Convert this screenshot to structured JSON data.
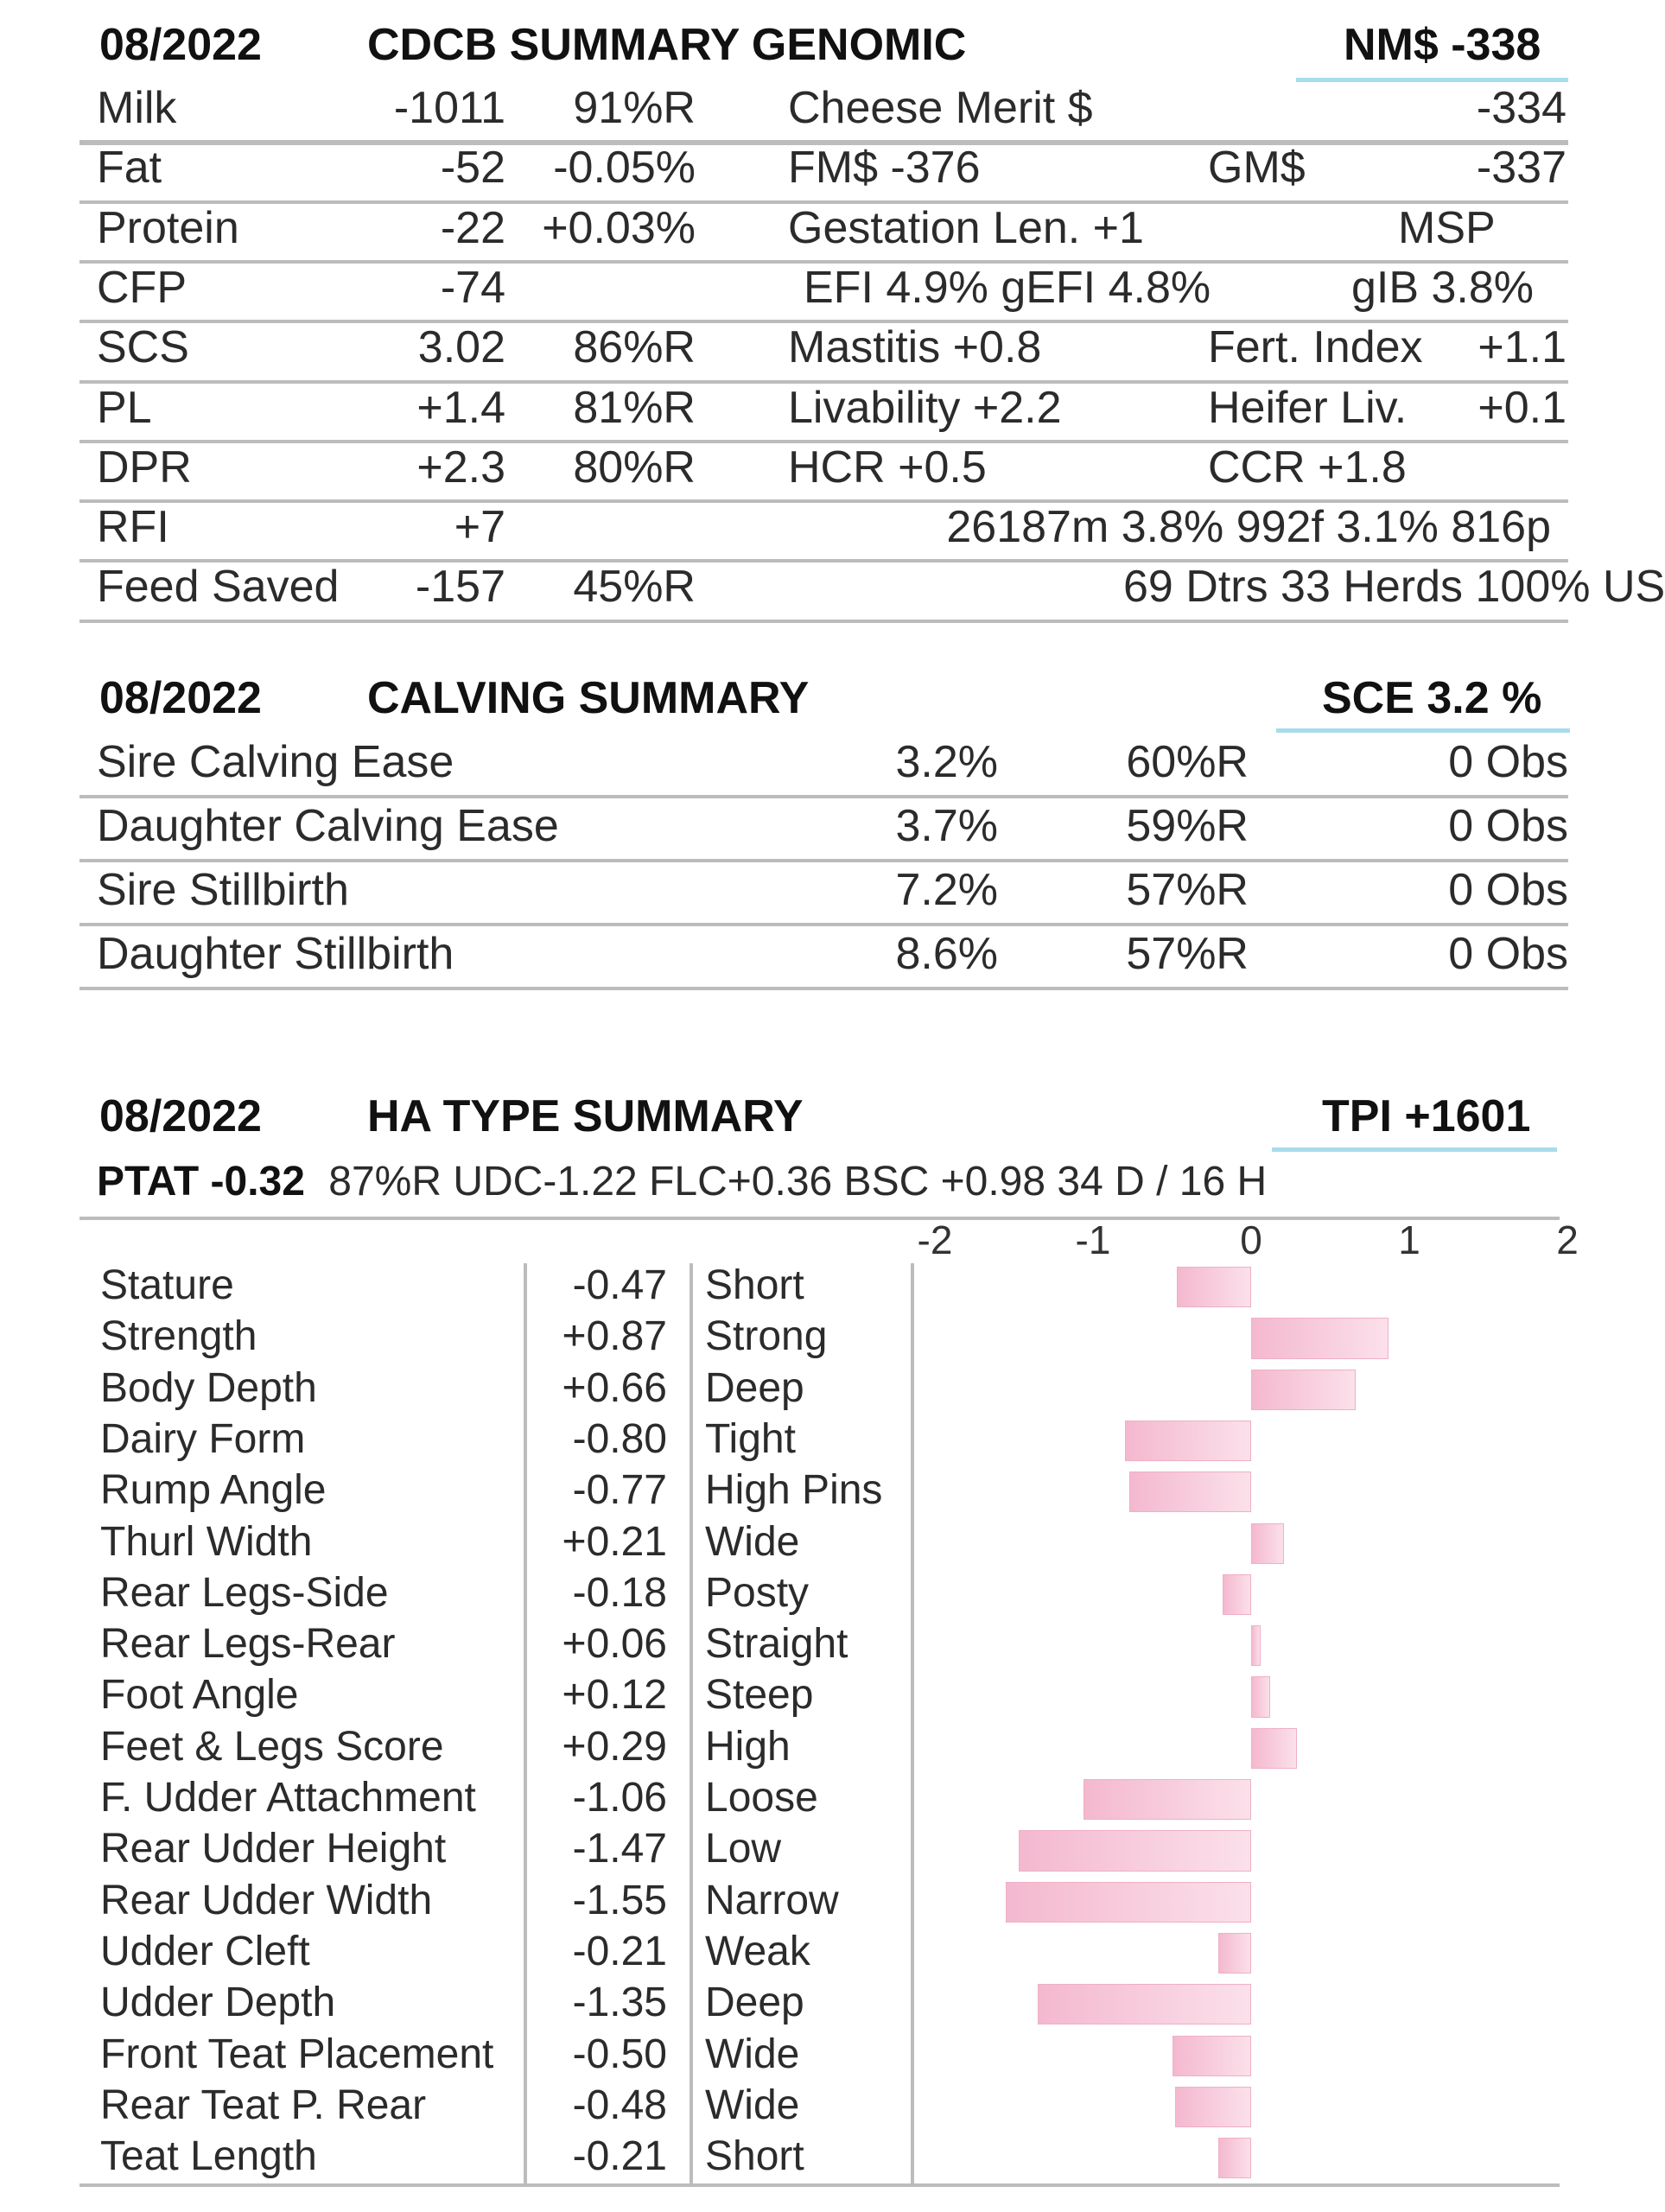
{
  "genomic": {
    "date": "08/2022",
    "title": "CDCB SUMMARY GENOMIC",
    "headline": "NM$ -338",
    "rows": [
      {
        "c1": "Milk",
        "c2": "-1011",
        "c3": "91%R",
        "c4": "Cheese Merit $",
        "c5": "",
        "c6": "-334"
      },
      {
        "c1": "Fat",
        "c2": "-52",
        "c3": "-0.05%",
        "c4": "FM$ -376",
        "c5": "GM$",
        "c6": "-337"
      },
      {
        "c1": "Protein",
        "c2": "-22",
        "c3": "+0.03%",
        "c4": "Gestation Len. +1",
        "c5": "",
        "c6": "MSP"
      },
      {
        "c1": "CFP",
        "c2": "-74",
        "c3": "",
        "c4": "EFI  4.9%   gEFI  4.8%",
        "c5": "",
        "c6": "gIB 3.8%"
      },
      {
        "c1": "SCS",
        "c2": "3.02",
        "c3": "86%R",
        "c4": "Mastitis   +0.8",
        "c5": "Fert. Index",
        "c6": "+1.1"
      },
      {
        "c1": "PL",
        "c2": "+1.4",
        "c3": "81%R",
        "c4": "Livability   +2.2",
        "c5": "Heifer Liv.",
        "c6": "+0.1"
      },
      {
        "c1": "DPR",
        "c2": "+2.3",
        "c3": "80%R",
        "c4": "HCR   +0.5",
        "c5": "CCR  +1.8",
        "c6": ""
      },
      {
        "c1": "RFI",
        "c2": "+7",
        "c3": "",
        "c4": "",
        "c5": "",
        "c6": "26187m  3.8%  992f  3.1%  816p"
      },
      {
        "c1": "Feed Saved",
        "c2": "-157",
        "c3": "45%R",
        "c4": "",
        "c5": "",
        "c6": "69 Dtrs  33 Herds  100% US"
      }
    ]
  },
  "calving": {
    "date": "08/2022",
    "title": "CALVING SUMMARY",
    "headline": "SCE 3.2 %",
    "rows": [
      {
        "name": "Sire Calving Ease",
        "pct": "3.2%",
        "rel": "60%R",
        "obs": "0 Obs"
      },
      {
        "name": "Daughter Calving Ease",
        "pct": "3.7%",
        "rel": "59%R",
        "obs": "0 Obs"
      },
      {
        "name": "Sire Stillbirth",
        "pct": "7.2%",
        "rel": "57%R",
        "obs": "0 Obs"
      },
      {
        "name": "Daughter Stillbirth",
        "pct": "8.6%",
        "rel": "57%R",
        "obs": "0 Obs"
      }
    ]
  },
  "type_summary": {
    "date": "08/2022",
    "title": "HA TYPE SUMMARY",
    "headline": "TPI +1601",
    "ptat_label": "PTAT -0.32",
    "ptat_rest": "87%R  UDC-1.22  FLC+0.36  BSC +0.98  34 D /  16 H",
    "axis_ticks": [
      "-2",
      "-1",
      "0",
      "1",
      "2"
    ]
  },
  "chart_data": {
    "type": "bar",
    "orientation": "horizontal",
    "xlim": [
      -2,
      2
    ],
    "bar_color": "#f4b8cf",
    "categories": [
      "Stature",
      "Strength",
      "Body Depth",
      "Dairy Form",
      "Rump Angle",
      "Thurl Width",
      "Rear Legs-Side",
      "Rear Legs-Rear",
      "Foot Angle",
      "Feet & Legs Score",
      "F. Udder Attachment",
      "Rear Udder Height",
      "Rear Udder Width",
      "Udder Cleft",
      "Udder Depth",
      "Front Teat Placement",
      "Rear Teat P. Rear",
      "Teat Length"
    ],
    "value_labels": [
      "-0.47",
      "+0.87",
      "+0.66",
      "-0.80",
      "-0.77",
      "+0.21",
      "-0.18",
      "+0.06",
      "+0.12",
      "+0.29",
      "-1.06",
      "-1.47",
      "-1.55",
      "-0.21",
      "-1.35",
      "-0.50",
      "-0.48",
      "-0.21"
    ],
    "values": [
      -0.47,
      0.87,
      0.66,
      -0.8,
      -0.77,
      0.21,
      -0.18,
      0.06,
      0.12,
      0.29,
      -1.06,
      -1.47,
      -1.55,
      -0.21,
      -1.35,
      -0.5,
      -0.48,
      -0.21
    ],
    "descriptors": [
      "Short",
      "Strong",
      "Deep",
      "Tight",
      "High Pins",
      "Wide",
      "Posty",
      "Straight",
      "Steep",
      "High",
      "Loose",
      "Low",
      "Narrow",
      "Weak",
      "Deep",
      "Wide",
      "Wide",
      "Short"
    ]
  }
}
